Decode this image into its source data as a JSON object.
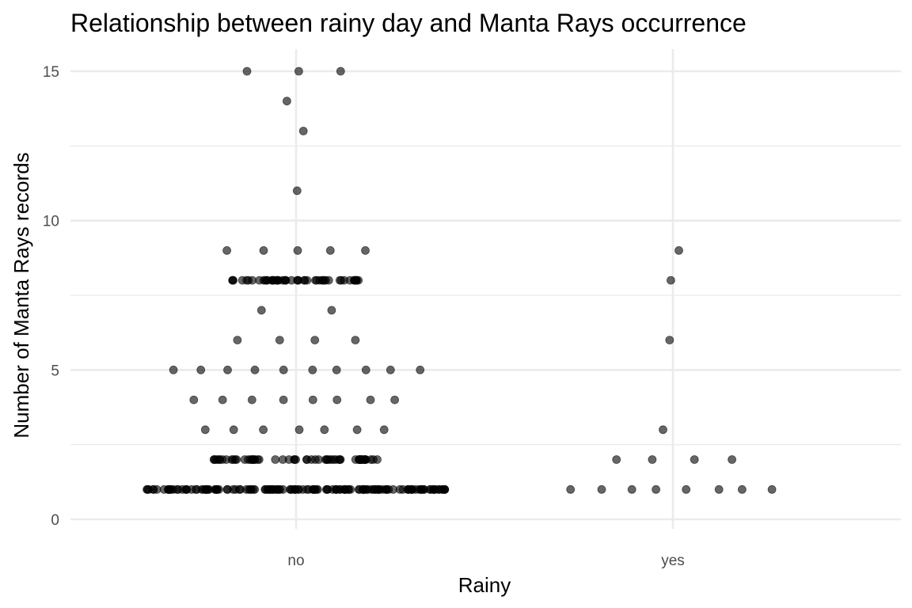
{
  "chart_data": {
    "type": "scatter",
    "title": "Relationship between rainy day and Manta Rays occurrence",
    "xlabel": "Rainy",
    "ylabel": "Number of Manta Rays records",
    "categories": [
      "no",
      "yes"
    ],
    "ylim": [
      -0.4,
      15.7
    ],
    "yticks": [
      0,
      5,
      10,
      15
    ],
    "grid": true,
    "theme": "minimal",
    "point_color": "#000000",
    "point_alpha": 0.6,
    "series": [
      {
        "category": "no",
        "points": [
          {
            "y": 15,
            "count": 3
          },
          {
            "y": 14,
            "count": 1
          },
          {
            "y": 13,
            "count": 1
          },
          {
            "y": 11,
            "count": 1
          },
          {
            "y": 9,
            "count": 5
          },
          {
            "y": 8,
            "count": 50
          },
          {
            "y": 7,
            "count": 2
          },
          {
            "y": 6,
            "count": 4
          },
          {
            "y": 5,
            "count": 10
          },
          {
            "y": 4,
            "count": 8
          },
          {
            "y": 3,
            "count": 7
          },
          {
            "y": 2,
            "count": 60
          },
          {
            "y": 1,
            "count": 150
          }
        ]
      },
      {
        "category": "yes",
        "points": [
          {
            "y": 9,
            "count": 1
          },
          {
            "y": 8,
            "count": 1
          },
          {
            "y": 6,
            "count": 1
          },
          {
            "y": 3,
            "count": 1
          },
          {
            "y": 2,
            "count": 4
          },
          {
            "y": 1,
            "count": 8
          }
        ]
      }
    ]
  }
}
